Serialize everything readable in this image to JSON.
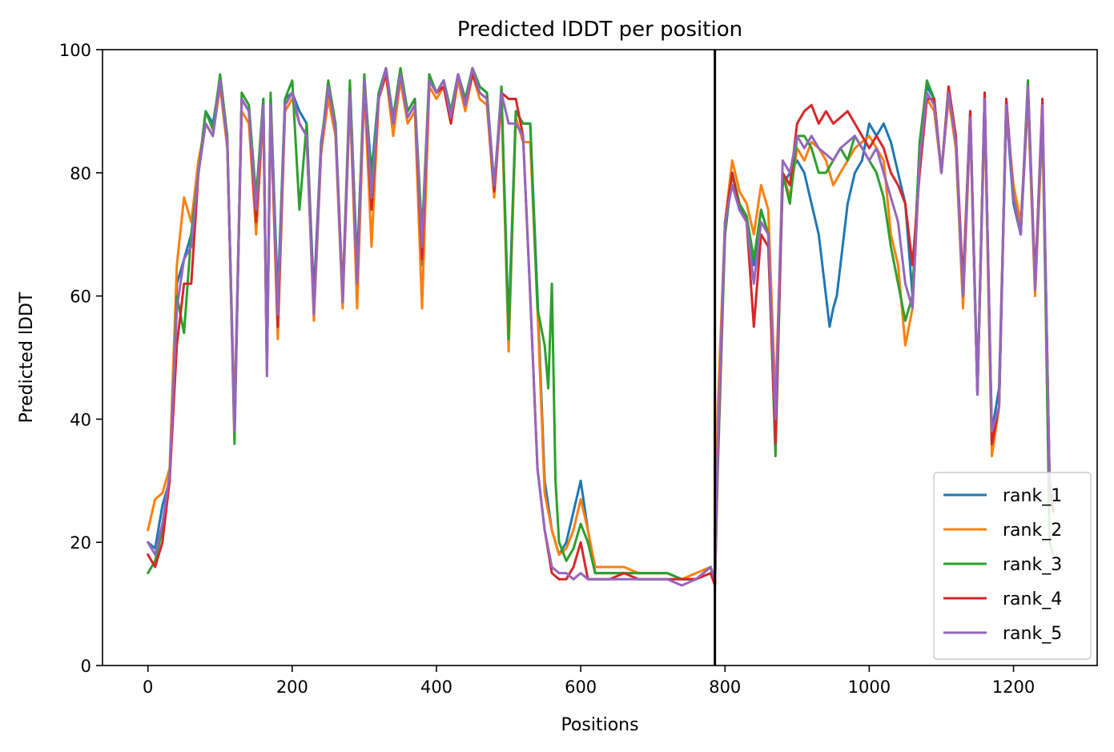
{
  "chart_data": {
    "type": "line",
    "title": "Predicted lDDT per position",
    "xlabel": "Positions",
    "ylabel": "Predicted lDDT",
    "xlim": [
      -63,
      1316
    ],
    "ylim": [
      0,
      100
    ],
    "x_ticks": [
      0,
      200,
      400,
      600,
      800,
      1000,
      1200
    ],
    "y_ticks": [
      0,
      20,
      40,
      60,
      80,
      100
    ],
    "grid": false,
    "legend_position": "lower right",
    "chain_break": 786,
    "series": [
      {
        "name": "rank_1",
        "color": "#1f77b4",
        "x": [
          0,
          10,
          20,
          30,
          40,
          50,
          60,
          70,
          80,
          90,
          100,
          110,
          120,
          130,
          140,
          150,
          160,
          165,
          170,
          180,
          190,
          200,
          210,
          220,
          230,
          240,
          250,
          260,
          270,
          280,
          290,
          300,
          310,
          320,
          330,
          340,
          350,
          360,
          370,
          380,
          390,
          400,
          410,
          420,
          430,
          440,
          450,
          460,
          470,
          480,
          490,
          500,
          510,
          520,
          530,
          540,
          550,
          560,
          570,
          580,
          590,
          600,
          610,
          620,
          640,
          660,
          680,
          700,
          720,
          740,
          760,
          780,
          786,
          790,
          800,
          810,
          820,
          830,
          840,
          850,
          860,
          870,
          880,
          890,
          900,
          910,
          920,
          930,
          940,
          945,
          950,
          955,
          960,
          970,
          980,
          990,
          1000,
          1010,
          1020,
          1030,
          1040,
          1050,
          1060,
          1070,
          1080,
          1090,
          1100,
          1110,
          1120,
          1130,
          1140,
          1150,
          1160,
          1170,
          1180,
          1190,
          1200,
          1210,
          1220,
          1230,
          1240,
          1250,
          1255
        ],
        "values": [
          20,
          19,
          26,
          30,
          62,
          66,
          70,
          80,
          90,
          88,
          95,
          85,
          40,
          92,
          90,
          75,
          92,
          50,
          92,
          60,
          92,
          93,
          90,
          88,
          60,
          85,
          93,
          88,
          60,
          94,
          65,
          95,
          80,
          93,
          97,
          88,
          96,
          90,
          92,
          65,
          95,
          93,
          95,
          90,
          96,
          92,
          97,
          94,
          93,
          78,
          93,
          55,
          90,
          88,
          88,
          60,
          30,
          22,
          18,
          20,
          25,
          30,
          22,
          15,
          15,
          15,
          15,
          15,
          15,
          14,
          14,
          16,
          14,
          40,
          70,
          80,
          75,
          72,
          65,
          74,
          70,
          42,
          78,
          80,
          82,
          80,
          75,
          70,
          60,
          55,
          58,
          60,
          65,
          75,
          80,
          82,
          88,
          86,
          88,
          85,
          80,
          75,
          60,
          85,
          94,
          92,
          80,
          93,
          86,
          60,
          90,
          45,
          92,
          38,
          45,
          90,
          75,
          70,
          92,
          62,
          90,
          30,
          25
        ]
      },
      {
        "name": "rank_2",
        "color": "#ff7f0e",
        "x": [
          0,
          10,
          20,
          30,
          40,
          50,
          60,
          70,
          80,
          90,
          100,
          110,
          120,
          130,
          140,
          150,
          160,
          165,
          170,
          180,
          190,
          200,
          210,
          220,
          230,
          240,
          250,
          260,
          270,
          280,
          290,
          300,
          310,
          320,
          330,
          340,
          350,
          360,
          370,
          380,
          390,
          400,
          410,
          420,
          430,
          440,
          450,
          460,
          470,
          480,
          490,
          500,
          510,
          520,
          530,
          540,
          550,
          560,
          570,
          580,
          590,
          600,
          610,
          620,
          640,
          660,
          680,
          700,
          720,
          740,
          760,
          780,
          786,
          790,
          800,
          810,
          820,
          830,
          840,
          850,
          860,
          870,
          880,
          890,
          900,
          910,
          920,
          930,
          940,
          950,
          960,
          970,
          980,
          990,
          1000,
          1010,
          1020,
          1030,
          1040,
          1050,
          1060,
          1070,
          1080,
          1090,
          1100,
          1110,
          1120,
          1130,
          1140,
          1150,
          1160,
          1170,
          1180,
          1190,
          1200,
          1210,
          1220,
          1230,
          1240,
          1250,
          1255
        ],
        "values": [
          22,
          27,
          28,
          32,
          65,
          76,
          72,
          82,
          88,
          86,
          94,
          84,
          40,
          90,
          88,
          70,
          90,
          48,
          90,
          53,
          90,
          92,
          88,
          86,
          56,
          83,
          92,
          86,
          58,
          92,
          58,
          94,
          68,
          92,
          96,
          86,
          95,
          88,
          90,
          58,
          94,
          92,
          94,
          88,
          95,
          90,
          96,
          92,
          91,
          76,
          92,
          51,
          89,
          85,
          85,
          58,
          28,
          22,
          18,
          19,
          22,
          27,
          22,
          16,
          16,
          16,
          15,
          15,
          15,
          14,
          15,
          16,
          14,
          42,
          72,
          82,
          77,
          75,
          70,
          78,
          74,
          43,
          80,
          76,
          84,
          82,
          85,
          84,
          82,
          78,
          80,
          82,
          84,
          85,
          86,
          84,
          82,
          70,
          65,
          52,
          58,
          82,
          92,
          90,
          80,
          92,
          84,
          58,
          88,
          44,
          90,
          34,
          42,
          90,
          78,
          72,
          92,
          60,
          88,
          28,
          25
        ]
      },
      {
        "name": "rank_3",
        "color": "#2ca02c",
        "x": [
          0,
          10,
          20,
          30,
          40,
          50,
          60,
          70,
          80,
          90,
          100,
          110,
          120,
          130,
          140,
          150,
          160,
          165,
          170,
          180,
          190,
          200,
          210,
          220,
          230,
          240,
          250,
          260,
          270,
          280,
          290,
          300,
          310,
          320,
          330,
          340,
          350,
          360,
          370,
          380,
          390,
          400,
          410,
          420,
          430,
          440,
          450,
          460,
          470,
          480,
          490,
          500,
          510,
          520,
          530,
          540,
          550,
          555,
          560,
          565,
          570,
          580,
          590,
          600,
          610,
          620,
          640,
          660,
          680,
          700,
          720,
          740,
          760,
          780,
          786,
          790,
          800,
          810,
          820,
          830,
          840,
          850,
          860,
          870,
          880,
          890,
          900,
          910,
          920,
          930,
          940,
          950,
          960,
          970,
          980,
          990,
          1000,
          1010,
          1020,
          1030,
          1040,
          1050,
          1060,
          1070,
          1080,
          1090,
          1100,
          1110,
          1120,
          1130,
          1140,
          1150,
          1160,
          1170,
          1180,
          1190,
          1200,
          1210,
          1220,
          1230,
          1240,
          1250,
          1255
        ],
        "values": [
          15,
          17,
          22,
          30,
          60,
          54,
          70,
          80,
          90,
          87,
          96,
          86,
          36,
          93,
          91,
          76,
          92,
          48,
          93,
          58,
          92,
          95,
          74,
          88,
          58,
          84,
          95,
          88,
          60,
          95,
          64,
          96,
          78,
          93,
          97,
          89,
          97,
          90,
          92,
          70,
          96,
          93,
          95,
          90,
          96,
          92,
          97,
          94,
          93,
          77,
          94,
          53,
          90,
          88,
          88,
          58,
          52,
          45,
          62,
          30,
          20,
          17,
          19,
          23,
          20,
          15,
          15,
          15,
          15,
          15,
          15,
          14,
          14,
          16,
          13,
          32,
          70,
          80,
          75,
          73,
          66,
          74,
          70,
          34,
          80,
          75,
          86,
          86,
          84,
          80,
          80,
          82,
          84,
          82,
          86,
          84,
          82,
          80,
          76,
          68,
          62,
          56,
          60,
          85,
          95,
          92,
          80,
          94,
          86,
          60,
          90,
          44,
          93,
          36,
          42,
          92,
          76,
          70,
          95,
          62,
          90,
          20,
          18
        ]
      },
      {
        "name": "rank_4",
        "color": "#d62728",
        "x": [
          0,
          10,
          20,
          30,
          40,
          50,
          60,
          70,
          80,
          90,
          100,
          110,
          120,
          130,
          140,
          150,
          160,
          165,
          170,
          180,
          190,
          200,
          210,
          220,
          230,
          240,
          250,
          260,
          270,
          280,
          290,
          300,
          310,
          320,
          330,
          340,
          350,
          360,
          370,
          380,
          390,
          400,
          410,
          420,
          430,
          440,
          450,
          460,
          470,
          480,
          490,
          500,
          510,
          520,
          530,
          540,
          550,
          560,
          570,
          580,
          590,
          600,
          610,
          620,
          640,
          660,
          680,
          700,
          720,
          740,
          760,
          780,
          786,
          790,
          800,
          810,
          820,
          830,
          840,
          850,
          860,
          870,
          880,
          890,
          900,
          910,
          920,
          930,
          940,
          950,
          960,
          970,
          980,
          990,
          1000,
          1010,
          1020,
          1030,
          1040,
          1050,
          1060,
          1070,
          1080,
          1090,
          1100,
          1110,
          1120,
          1130,
          1140,
          1150,
          1160,
          1170,
          1180,
          1190,
          1200,
          1210,
          1220,
          1230,
          1240,
          1250,
          1255
        ],
        "values": [
          18,
          16,
          20,
          30,
          52,
          62,
          62,
          80,
          88,
          86,
          95,
          85,
          38,
          92,
          90,
          72,
          91,
          48,
          91,
          55,
          91,
          93,
          88,
          86,
          58,
          84,
          94,
          87,
          60,
          93,
          62,
          95,
          74,
          92,
          96,
          88,
          96,
          89,
          91,
          66,
          95,
          93,
          94,
          88,
          96,
          91,
          96,
          93,
          92,
          77,
          93,
          92,
          92,
          86,
          60,
          32,
          22,
          15,
          14,
          14,
          16,
          20,
          14,
          14,
          14,
          15,
          14,
          14,
          14,
          14,
          14,
          15,
          13,
          34,
          72,
          80,
          74,
          72,
          55,
          70,
          68,
          36,
          80,
          78,
          88,
          90,
          91,
          88,
          90,
          88,
          89,
          90,
          88,
          86,
          84,
          86,
          84,
          80,
          78,
          75,
          65,
          80,
          92,
          92,
          80,
          94,
          86,
          62,
          90,
          44,
          93,
          36,
          42,
          92,
          76,
          70,
          94,
          62,
          92,
          30,
          25
        ]
      },
      {
        "name": "rank_5",
        "color": "#9467bd",
        "x": [
          0,
          10,
          20,
          30,
          40,
          50,
          60,
          70,
          80,
          90,
          100,
          110,
          120,
          130,
          140,
          150,
          160,
          165,
          170,
          180,
          190,
          200,
          210,
          220,
          230,
          240,
          250,
          260,
          270,
          280,
          290,
          300,
          310,
          320,
          330,
          340,
          350,
          360,
          370,
          380,
          390,
          400,
          410,
          420,
          430,
          440,
          450,
          460,
          470,
          480,
          490,
          500,
          510,
          520,
          530,
          540,
          550,
          560,
          570,
          580,
          590,
          600,
          610,
          620,
          640,
          660,
          680,
          700,
          720,
          740,
          760,
          780,
          786,
          790,
          800,
          810,
          820,
          830,
          840,
          850,
          860,
          870,
          880,
          890,
          900,
          910,
          920,
          930,
          940,
          950,
          960,
          970,
          980,
          990,
          1000,
          1010,
          1020,
          1030,
          1040,
          1050,
          1060,
          1070,
          1080,
          1090,
          1100,
          1110,
          1120,
          1130,
          1140,
          1150,
          1160,
          1170,
          1180,
          1190,
          1200,
          1210,
          1220,
          1230,
          1240,
          1250,
          1255
        ],
        "values": [
          20,
          18,
          23,
          31,
          58,
          66,
          68,
          80,
          88,
          86,
          95,
          85,
          38,
          92,
          90,
          74,
          91,
          47,
          91,
          57,
          91,
          93,
          88,
          86,
          57,
          84,
          94,
          87,
          59,
          93,
          62,
          95,
          76,
          92,
          97,
          88,
          96,
          89,
          91,
          68,
          95,
          93,
          95,
          89,
          96,
          91,
          97,
          93,
          92,
          78,
          93,
          88,
          88,
          86,
          60,
          32,
          22,
          16,
          15,
          15,
          14,
          15,
          14,
          14,
          14,
          14,
          14,
          14,
          14,
          13,
          14,
          16,
          14,
          36,
          72,
          78,
          74,
          72,
          62,
          72,
          70,
          40,
          82,
          80,
          86,
          84,
          86,
          84,
          83,
          82,
          84,
          85,
          86,
          84,
          82,
          84,
          80,
          76,
          72,
          62,
          58,
          82,
          93,
          91,
          80,
          93,
          85,
          60,
          89,
          44,
          92,
          38,
          42,
          91,
          76,
          70,
          94,
          61,
          91,
          30,
          27
        ]
      }
    ]
  }
}
